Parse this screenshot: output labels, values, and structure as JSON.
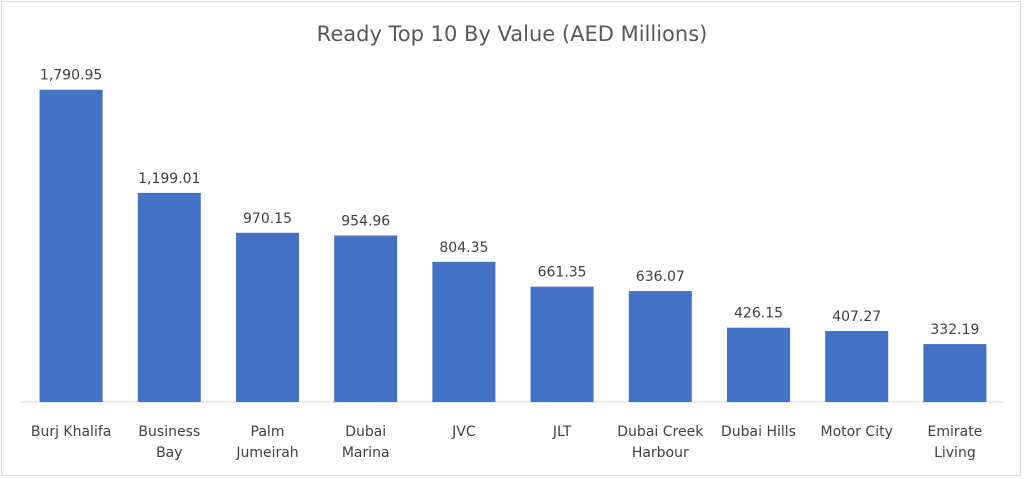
{
  "chart_data": {
    "type": "bar",
    "title": "Ready Top 10 By Value (AED Millions)",
    "categories": [
      [
        "Burj Khalifa"
      ],
      [
        "Business",
        "Bay"
      ],
      [
        "Palm",
        "Jumeirah"
      ],
      [
        "Dubai",
        "Marina"
      ],
      [
        "JVC"
      ],
      [
        "JLT"
      ],
      [
        "Dubai Creek",
        "Harbour"
      ],
      [
        "Dubai Hills"
      ],
      [
        "Motor City"
      ],
      [
        "Emirate",
        "Living"
      ]
    ],
    "values": [
      1790.95,
      1199.01,
      970.15,
      954.96,
      804.35,
      661.35,
      636.07,
      426.15,
      407.27,
      332.19
    ],
    "value_labels": [
      "1,790.95",
      "1,199.01",
      "970.15",
      "954.96",
      "804.35",
      "661.35",
      "636.07",
      "426.15",
      "407.27",
      "332.19"
    ],
    "ylim": [
      0,
      1950
    ],
    "grid": false,
    "legend": "none",
    "xlabel": "",
    "ylabel": "",
    "bar_color": "#4472c4"
  }
}
